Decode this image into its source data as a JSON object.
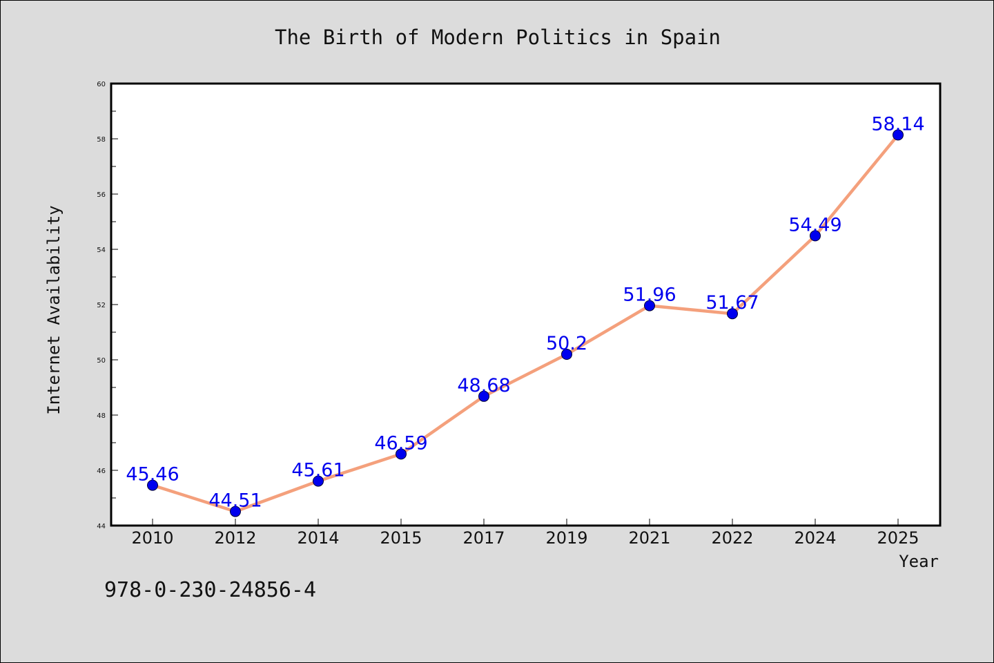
{
  "chart_data": {
    "type": "line",
    "title": "The Birth of Modern Politics in Spain",
    "xlabel": "Year",
    "ylabel": "Internet Availability",
    "categories": [
      "2010",
      "2012",
      "2014",
      "2015",
      "2017",
      "2019",
      "2021",
      "2022",
      "2024",
      "2025"
    ],
    "series": [
      {
        "values": [
          45.46,
          44.51,
          45.61,
          46.59,
          48.68,
          50.2,
          51.96,
          51.67,
          54.49,
          58.14
        ],
        "labels": [
          "45.46",
          "44.51",
          "45.61",
          "46.59",
          "48.68",
          "50.2",
          "51.96",
          "51.67",
          "54.49",
          "58.14"
        ]
      }
    ],
    "ylim": [
      44,
      60
    ],
    "yticks": [
      "44",
      "46",
      "48",
      "50",
      "52",
      "54",
      "56",
      "58",
      "60"
    ],
    "grid": false,
    "line_color": "#f4a07c",
    "marker_color": "#0000ee",
    "label_color": "#0000ee"
  },
  "footer": {
    "isbn": "978-0-230-24856-4"
  }
}
